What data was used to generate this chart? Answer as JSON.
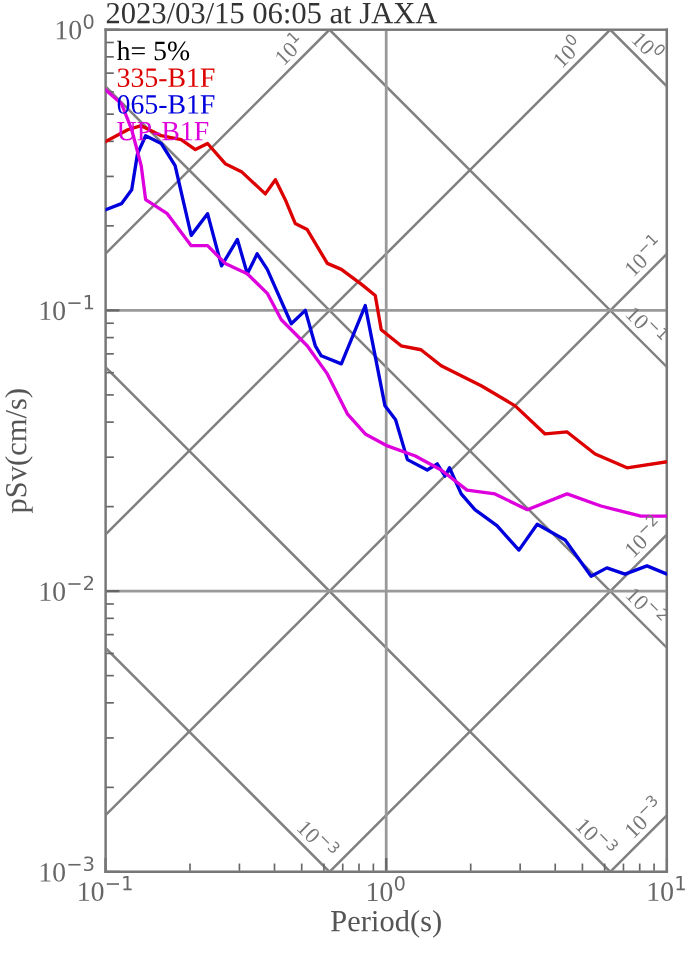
{
  "chart_data": {
    "type": "line",
    "title": "2023/03/15 06:05 at JAXA",
    "xlabel": "Period(s)",
    "ylabel": "pSv(cm/s)",
    "legend_title": "h= 5%",
    "legend": "top left",
    "log": "xy",
    "grid": true,
    "xlim": [
      0.1,
      10
    ],
    "ylim": [
      0.001,
      1
    ],
    "xticks": [
      {
        "value": 0.1,
        "label": "10$^{−1}$"
      },
      {
        "value": 1,
        "label": "10$^{0}$"
      },
      {
        "value": 10,
        "label": "10$^{1}$"
      }
    ],
    "yticks": [
      {
        "value": 0.001,
        "label": "10$^{−3}$"
      },
      {
        "value": 0.01,
        "label": "10$^{−2}$"
      },
      {
        "value": 0.1,
        "label": "10$^{−1}$"
      },
      {
        "value": 1,
        "label": "10$^{0}$"
      }
    ],
    "series": [
      {
        "color": "#808080",
        "x": [
          0.1,
          0.628
        ],
        "values": [
          0.00628,
          0.001
        ]
      },
      {
        "color": "#808080",
        "x": [
          0.1,
          6.28
        ],
        "values": [
          0.0628,
          0.001
        ]
      },
      {
        "color": "#808080",
        "x": [
          0.1,
          10
        ],
        "values": [
          0.628,
          0.00628
        ]
      },
      {
        "color": "#808080",
        "x": [
          0.628,
          10
        ],
        "values": [
          1,
          0.0628
        ]
      },
      {
        "color": "#808080",
        "x": [
          6.28,
          10
        ],
        "values": [
          1,
          0.628
        ]
      },
      {
        "color": "#808080",
        "x": [
          6.28,
          10
        ],
        "values": [
          0.001,
          0.00159
        ]
      },
      {
        "color": "#808080",
        "x": [
          0.628,
          10
        ],
        "values": [
          0.001,
          0.0159
        ]
      },
      {
        "color": "#808080",
        "x": [
          0.1,
          10
        ],
        "values": [
          0.00159,
          0.159
        ]
      },
      {
        "color": "#808080",
        "x": [
          0.1,
          6.28
        ],
        "values": [
          0.0159,
          1
        ]
      },
      {
        "color": "#808080",
        "x": [
          0.1,
          0.628
        ],
        "values": [
          0.159,
          1
        ]
      },
      {
        "name": "335-B1F",
        "color": "#dd0000",
        "x": [
          0.1,
          0.12,
          0.134,
          0.158,
          0.186,
          0.209,
          0.231,
          0.267,
          0.305,
          0.371,
          0.403,
          0.437,
          0.474,
          0.523,
          0.617,
          0.692,
          0.815,
          0.914,
          0.96,
          1.13,
          1.33,
          1.57,
          2.18,
          2.88,
          3.68,
          4.41,
          5.55,
          7.21,
          10
        ],
        "values": [
          0.399,
          0.44,
          0.455,
          0.419,
          0.406,
          0.374,
          0.393,
          0.333,
          0.312,
          0.26,
          0.292,
          0.248,
          0.204,
          0.194,
          0.147,
          0.14,
          0.124,
          0.113,
          0.0853,
          0.0748,
          0.0724,
          0.0635,
          0.0539,
          0.0457,
          0.0363,
          0.0369,
          0.0308,
          0.0275,
          0.0289
        ]
      },
      {
        "name": "065-B1F",
        "color": "#0000dd",
        "x": [
          0.1,
          0.114,
          0.124,
          0.13,
          0.139,
          0.158,
          0.177,
          0.202,
          0.231,
          0.259,
          0.295,
          0.32,
          0.347,
          0.377,
          0.459,
          0.515,
          0.559,
          0.587,
          0.692,
          0.842,
          0.99,
          1.08,
          1.19,
          1.4,
          1.52,
          1.62,
          1.68,
          1.85,
          2.07,
          2.48,
          2.97,
          3.45,
          4.34,
          5.37,
          6.11,
          7.09,
          8.49,
          10
        ],
        "values": [
          0.228,
          0.24,
          0.269,
          0.361,
          0.419,
          0.393,
          0.328,
          0.185,
          0.221,
          0.144,
          0.179,
          0.135,
          0.159,
          0.14,
          0.0896,
          0.1,
          0.0748,
          0.0689,
          0.0645,
          0.104,
          0.0457,
          0.0408,
          0.0294,
          0.027,
          0.0284,
          0.0257,
          0.0275,
          0.0222,
          0.0195,
          0.0171,
          0.014,
          0.0173,
          0.0152,
          0.0113,
          0.0121,
          0.0115,
          0.0123,
          0.0115
        ]
      },
      {
        "name": "UP-B1F",
        "color": "#dd00dd",
        "x": [
          0.1,
          0.114,
          0.124,
          0.134,
          0.139,
          0.166,
          0.202,
          0.231,
          0.267,
          0.32,
          0.377,
          0.423,
          0.523,
          0.617,
          0.727,
          0.842,
          1.01,
          1.27,
          1.57,
          1.94,
          2.44,
          3.18,
          4.41,
          5.82,
          8.08,
          10
        ],
        "values": [
          0.611,
          0.545,
          0.44,
          0.328,
          0.248,
          0.221,
          0.17,
          0.17,
          0.147,
          0.135,
          0.115,
          0.0926,
          0.0748,
          0.0594,
          0.0428,
          0.0363,
          0.0329,
          0.0303,
          0.027,
          0.0229,
          0.0222,
          0.0195,
          0.0222,
          0.0201,
          0.0185,
          0.0185
        ]
      }
    ],
    "annotations": [
      {
        "text": "10$^{1}$",
        "x": 0.46,
        "y": 0.731
      },
      {
        "text": "10$^{0}$",
        "x": 4.5,
        "y": 0.716
      },
      {
        "text": "10$^{0}$",
        "x": 8.4,
        "y": 0.748
      },
      {
        "text": "10$^{−1}$",
        "x": 8.4,
        "y": 0.134
      },
      {
        "text": "10$^{−1}$",
        "x": 8.3,
        "y": 0.0757
      },
      {
        "text": "10$^{−2}$",
        "x": 8.4,
        "y": 0.0134
      },
      {
        "text": "10$^{−2}$",
        "x": 8.3,
        "y": 0.00757
      },
      {
        "text": "10$^{−3}$",
        "x": 0.56,
        "y": 0.00112
      },
      {
        "text": "10$^{−3}$",
        "x": 5.5,
        "y": 0.00114
      },
      {
        "text": "10$^{−3}$",
        "x": 8.4,
        "y": 0.00134
      }
    ]
  }
}
